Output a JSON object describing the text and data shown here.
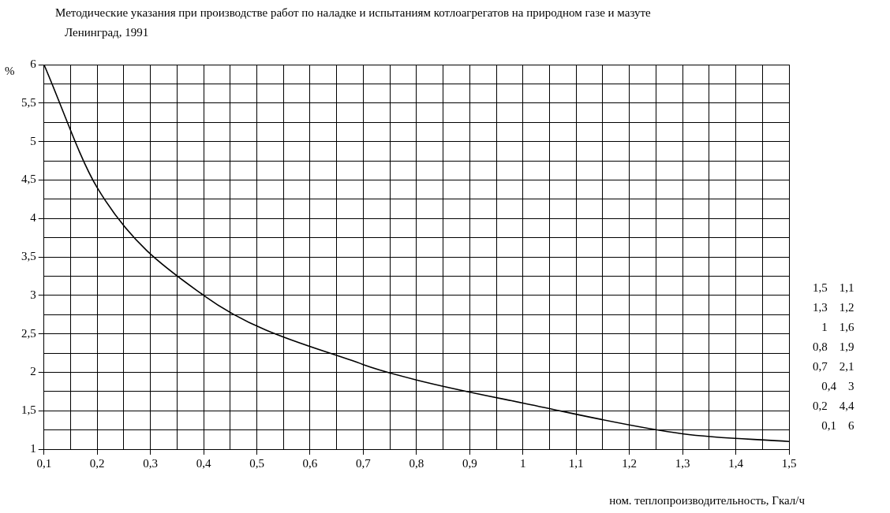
{
  "chart_data": {
    "type": "line",
    "title": "Методические указания при производстве работ по наладке и испытаниям котлоагрегатов на природном газе и мазуте",
    "subtitle": "Ленинград, 1991",
    "xlabel": "ном. теплопроизводительность, Гкал/ч",
    "ylabel": "%",
    "x": [
      0.1,
      0.2,
      0.4,
      0.7,
      0.8,
      1,
      1.3,
      1.5
    ],
    "series": [
      {
        "color": "#000000",
        "values": [
          6,
          4.4,
          3,
          2.1,
          1.9,
          1.6,
          1.2,
          1.1
        ]
      }
    ],
    "xlim": [
      0.1,
      1.5
    ],
    "xticks": [
      {
        "value": 0.1,
        "label": "0,1"
      },
      {
        "value": 0.15,
        "label": null
      },
      {
        "value": 0.2,
        "label": "0,2"
      },
      {
        "value": 0.25,
        "label": null
      },
      {
        "value": 0.3,
        "label": "0,3"
      },
      {
        "value": 0.35,
        "label": null
      },
      {
        "value": 0.4,
        "label": "0,4"
      },
      {
        "value": 0.45,
        "label": null
      },
      {
        "value": 0.5,
        "label": "0,5"
      },
      {
        "value": 0.55,
        "label": null
      },
      {
        "value": 0.6,
        "label": "0,6"
      },
      {
        "value": 0.65,
        "label": null
      },
      {
        "value": 0.7,
        "label": "0,7"
      },
      {
        "value": 0.75,
        "label": null
      },
      {
        "value": 0.8,
        "label": "0,8"
      },
      {
        "value": 0.85,
        "label": null
      },
      {
        "value": 0.9,
        "label": "0,9"
      },
      {
        "value": 0.95,
        "label": null
      },
      {
        "value": 1,
        "label": "1"
      },
      {
        "value": 1.05,
        "label": null
      },
      {
        "value": 1.1,
        "label": "1,1"
      },
      {
        "value": 1.15,
        "label": null
      },
      {
        "value": 1.2,
        "label": "1,2"
      },
      {
        "value": 1.25,
        "label": null
      },
      {
        "value": 1.3,
        "label": "1,3"
      },
      {
        "value": 1.35,
        "label": null
      },
      {
        "value": 1.4,
        "label": "1,4"
      },
      {
        "value": 1.45,
        "label": null
      },
      {
        "value": 1.5,
        "label": "1,5"
      }
    ],
    "ylim": [
      1,
      6
    ],
    "yticks": [
      1,
      {
        "value": 1.25,
        "label": null
      },
      {
        "value": 1.5,
        "label": "1,5"
      },
      {
        "value": 1.75,
        "label": null
      },
      2,
      {
        "value": 2.25,
        "label": null
      },
      {
        "value": 2.5,
        "label": "2,5"
      },
      {
        "value": 2.75,
        "label": null
      },
      3,
      {
        "value": 3.25,
        "label": null
      },
      {
        "value": 3.5,
        "label": "3,5"
      },
      {
        "value": 3.75,
        "label": null
      },
      4,
      {
        "value": 4.25,
        "label": null
      },
      {
        "value": 4.5,
        "label": "4,5"
      },
      {
        "value": 4.75,
        "label": null
      },
      5,
      {
        "value": 5.25,
        "label": null
      },
      {
        "value": 5.5,
        "label": "5,5"
      },
      {
        "value": 5.75,
        "label": null
      },
      6
    ],
    "annotations": [
      "1,5    1,1",
      "1,3    1,2",
      "1    1,6",
      "0,8    1,9",
      "0,7    2,1",
      "0,4    3",
      "0,2    4,4",
      "0,1    6"
    ],
    "grid": true,
    "marker": "none",
    "line_style": "solid"
  }
}
